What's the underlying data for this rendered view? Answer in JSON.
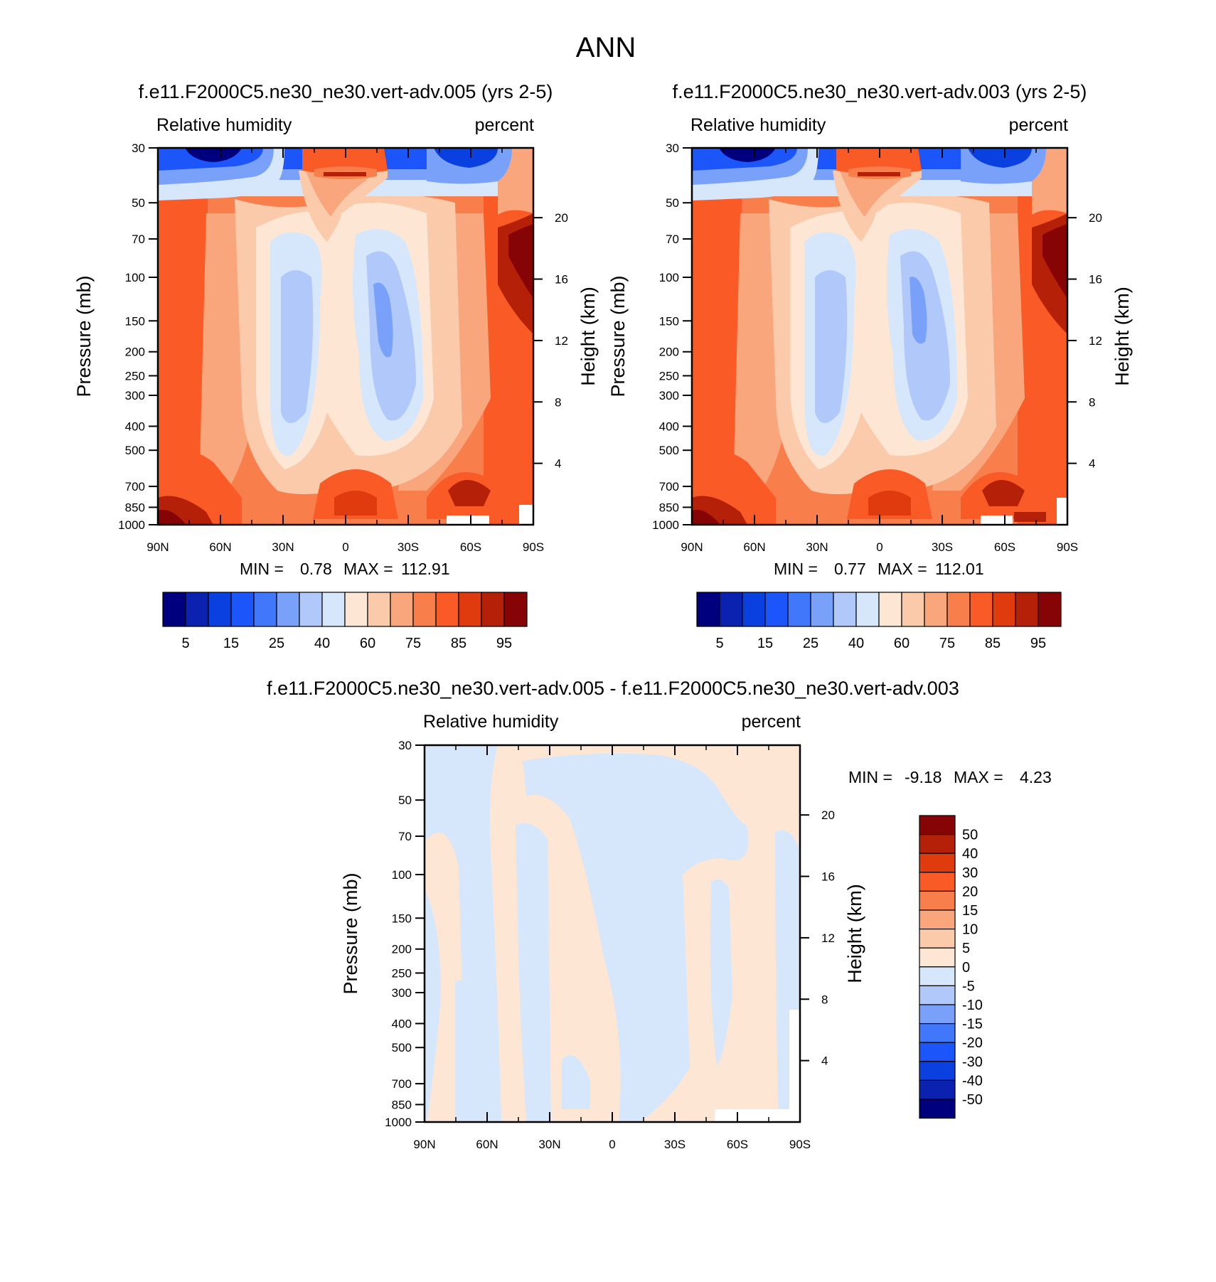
{
  "figure_title": "ANN",
  "chart_data": [
    {
      "type": "heatmap",
      "title": "f.e11.F2000C5.ne30_ne30.vert-adv.005 (yrs 2-5)",
      "left_label": "Relative humidity",
      "right_label": "percent",
      "variable": "Relative humidity",
      "units": "percent",
      "ylabel": "Pressure (mb)",
      "ylabel_right": "Height (km)",
      "x_ticks": [
        "90N",
        "60N",
        "30N",
        "0",
        "30S",
        "60S",
        "90S"
      ],
      "y_ticks": [
        "30",
        "50",
        "70",
        "100",
        "150",
        "200",
        "250",
        "300",
        "400",
        "500",
        "700",
        "850",
        "1000"
      ],
      "height_ticks": [
        "20",
        "16",
        "12",
        "8",
        "4"
      ],
      "xlim": [
        90,
        -90
      ],
      "ylim": [
        1000,
        30
      ],
      "min_label": "MIN =",
      "min_value": "0.78",
      "max_label": "MAX =",
      "max_value": "112.91",
      "colorbar": {
        "orientation": "horizontal",
        "labels": [
          "5",
          "15",
          "25",
          "40",
          "60",
          "75",
          "85",
          "95"
        ],
        "levels": [
          5,
          10,
          15,
          20,
          25,
          30,
          40,
          50,
          60,
          65,
          70,
          75,
          80,
          85,
          90,
          95
        ]
      }
    },
    {
      "type": "heatmap",
      "title": "f.e11.F2000C5.ne30_ne30.vert-adv.003 (yrs 2-5)",
      "left_label": "Relative humidity",
      "right_label": "percent",
      "variable": "Relative humidity",
      "units": "percent",
      "ylabel": "Pressure (mb)",
      "ylabel_right": "Height (km)",
      "x_ticks": [
        "90N",
        "60N",
        "30N",
        "0",
        "30S",
        "60S",
        "90S"
      ],
      "y_ticks": [
        "30",
        "50",
        "70",
        "100",
        "150",
        "200",
        "250",
        "300",
        "400",
        "500",
        "700",
        "850",
        "1000"
      ],
      "height_ticks": [
        "20",
        "16",
        "12",
        "8",
        "4"
      ],
      "xlim": [
        90,
        -90
      ],
      "ylim": [
        1000,
        30
      ],
      "min_label": "MIN =",
      "min_value": "0.77",
      "max_label": "MAX =",
      "max_value": "112.01",
      "colorbar": {
        "orientation": "horizontal",
        "labels": [
          "5",
          "15",
          "25",
          "40",
          "60",
          "75",
          "85",
          "95"
        ],
        "levels": [
          5,
          10,
          15,
          20,
          25,
          30,
          40,
          50,
          60,
          65,
          70,
          75,
          80,
          85,
          90,
          95
        ]
      }
    },
    {
      "type": "heatmap",
      "title": "f.e11.F2000C5.ne30_ne30.vert-adv.005 - f.e11.F2000C5.ne30_ne30.vert-adv.003",
      "left_label": "Relative humidity",
      "right_label": "percent",
      "variable": "Relative humidity",
      "units": "percent",
      "ylabel": "Pressure (mb)",
      "ylabel_right": "Height (km)",
      "x_ticks": [
        "90N",
        "60N",
        "30N",
        "0",
        "30S",
        "60S",
        "90S"
      ],
      "y_ticks": [
        "30",
        "50",
        "70",
        "100",
        "150",
        "200",
        "250",
        "300",
        "400",
        "500",
        "700",
        "850",
        "1000"
      ],
      "height_ticks": [
        "20",
        "16",
        "12",
        "8",
        "4"
      ],
      "xlim": [
        90,
        -90
      ],
      "ylim": [
        1000,
        30
      ],
      "min_label": "MIN =",
      "min_value": "-9.18",
      "max_label": "MAX =",
      "max_value": "4.23",
      "colorbar": {
        "orientation": "vertical",
        "labels": [
          "50",
          "40",
          "30",
          "20",
          "15",
          "10",
          "5",
          "0",
          "-5",
          "-10",
          "-15",
          "-20",
          "-30",
          "-40",
          "-50"
        ]
      }
    }
  ],
  "colors": {
    "ramp": [
      "#00007f",
      "#0b22b0",
      "#0a3fe0",
      "#1c55fa",
      "#4177fb",
      "#7aa1f9",
      "#b0c8fa",
      "#d6e6fb",
      "#fde7d4",
      "#fbcaaa",
      "#f9a67c",
      "#f87e4c",
      "#fa5a25",
      "#df3b0f",
      "#b42108",
      "#860405"
    ]
  }
}
